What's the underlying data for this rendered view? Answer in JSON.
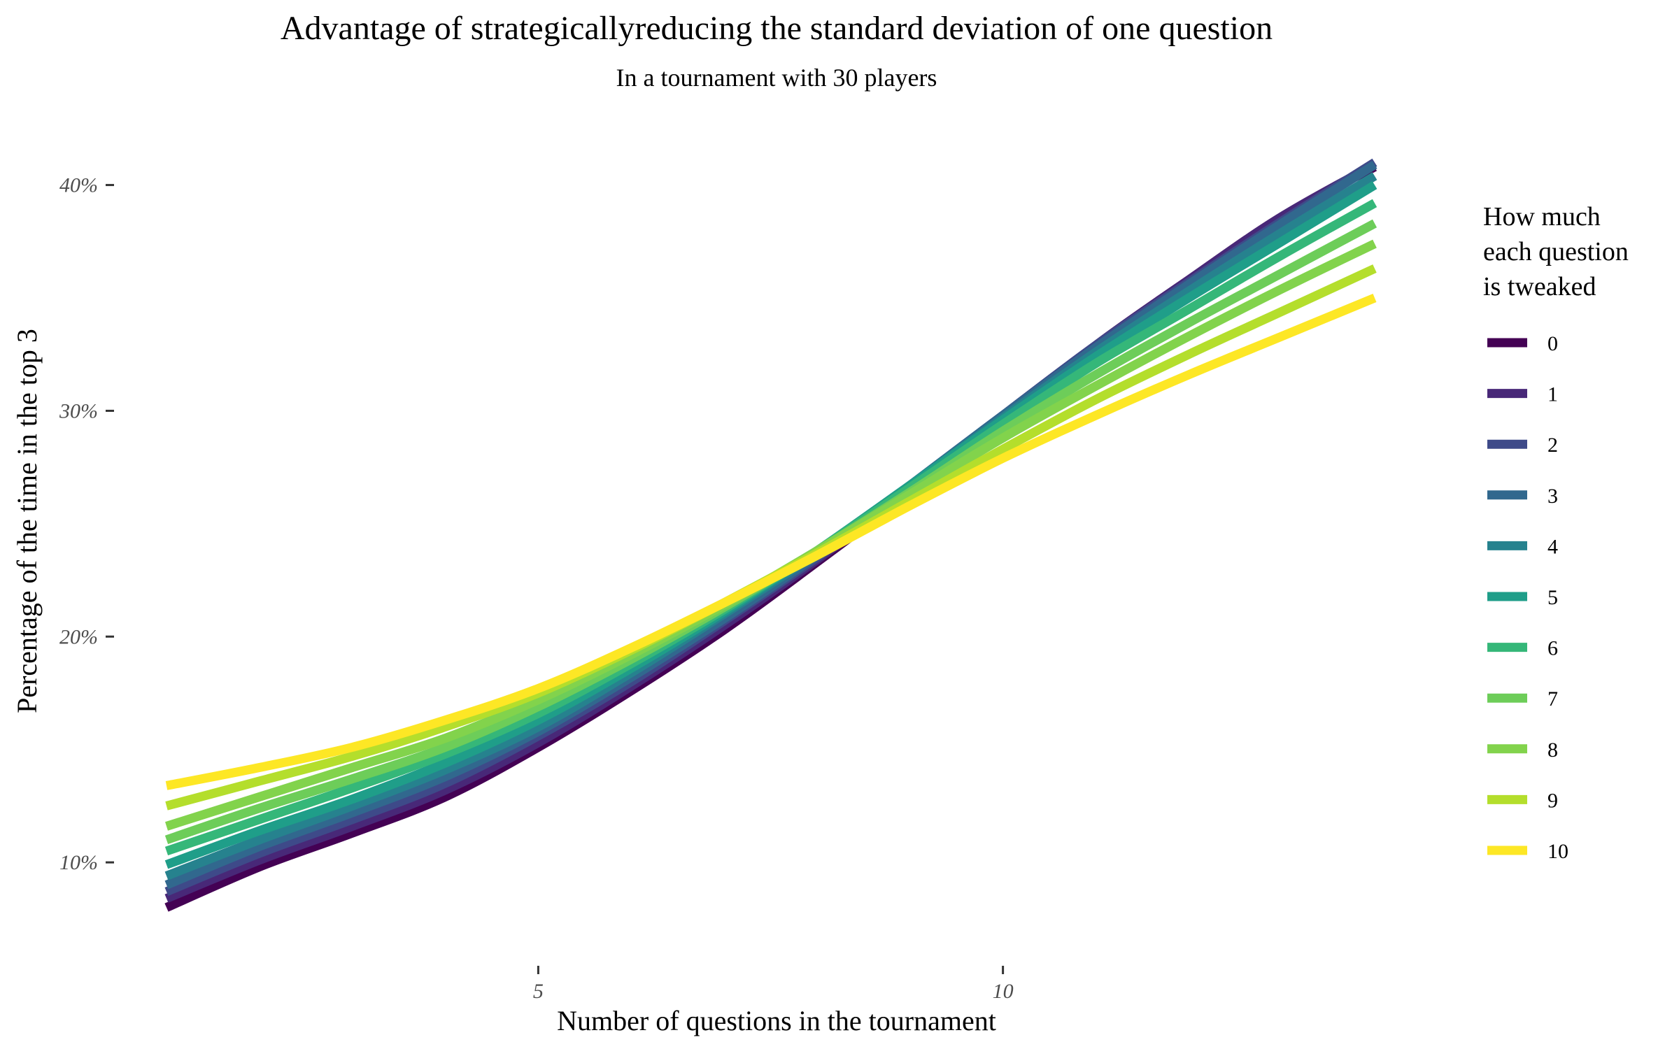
{
  "chart_data": {
    "type": "line",
    "title": "Advantage of strategicallyreducing the standard deviation of one question",
    "subtitle": "In a tournament with 30 players",
    "xlabel": "Number of questions in the tournament",
    "ylabel": "Percentage of the time in the top 3",
    "xlim": [
      1,
      14
    ],
    "ylim": [
      7,
      42
    ],
    "x_ticks": [
      5,
      10
    ],
    "y_ticks": [
      10,
      20,
      30,
      40
    ],
    "y_tick_suffix": "%",
    "grid": false,
    "legend": {
      "title_lines": [
        "How much",
        "each question",
        "is tweaked"
      ],
      "position": "right"
    },
    "x": [
      1,
      2,
      3,
      4,
      5,
      6,
      7,
      8,
      9,
      10,
      11,
      12,
      13,
      14
    ],
    "series": [
      {
        "name": "0",
        "color": "#440154",
        "values": [
          8.0,
          9.8,
          11.3,
          12.9,
          15.1,
          17.6,
          20.3,
          23.3,
          26.4,
          29.6,
          32.9,
          35.8,
          38.6,
          40.8
        ]
      },
      {
        "name": "1",
        "color": "#482878",
        "values": [
          8.4,
          10.1,
          11.6,
          13.2,
          15.3,
          17.8,
          20.5,
          23.4,
          26.5,
          29.7,
          32.9,
          35.8,
          38.6,
          40.9
        ]
      },
      {
        "name": "2",
        "color": "#3E4A89",
        "values": [
          8.7,
          10.4,
          11.9,
          13.5,
          15.6,
          18.0,
          20.7,
          23.5,
          26.6,
          29.8,
          32.9,
          35.7,
          38.4,
          41.0
        ]
      },
      {
        "name": "3",
        "color": "#31688E",
        "values": [
          9.0,
          10.7,
          12.2,
          13.8,
          15.8,
          18.2,
          20.8,
          23.6,
          26.7,
          29.8,
          32.8,
          35.6,
          38.3,
          40.9
        ]
      },
      {
        "name": "4",
        "color": "#26828E",
        "values": [
          9.4,
          11.0,
          12.5,
          14.1,
          16.0,
          18.4,
          21.0,
          23.7,
          26.7,
          29.7,
          32.6,
          35.3,
          37.9,
          40.4
        ]
      },
      {
        "name": "5",
        "color": "#1F9E89",
        "values": [
          9.9,
          11.4,
          12.8,
          14.4,
          16.3,
          18.6,
          21.1,
          23.8,
          26.7,
          29.6,
          32.4,
          35.0,
          37.5,
          40.0
        ]
      },
      {
        "name": "6",
        "color": "#35B779",
        "values": [
          10.5,
          11.9,
          13.3,
          14.8,
          16.6,
          18.8,
          21.2,
          23.8,
          26.6,
          29.4,
          32.1,
          34.5,
          36.9,
          39.2
        ]
      },
      {
        "name": "7",
        "color": "#6DCD59",
        "values": [
          11.0,
          12.4,
          13.7,
          15.1,
          16.9,
          19.0,
          21.3,
          23.8,
          26.4,
          29.1,
          31.6,
          33.9,
          36.1,
          38.3
        ]
      },
      {
        "name": "8",
        "color": "#82D34C",
        "values": [
          11.6,
          12.9,
          14.2,
          15.5,
          17.2,
          19.2,
          21.4,
          23.8,
          26.3,
          28.8,
          31.1,
          33.3,
          35.4,
          37.4
        ]
      },
      {
        "name": "9",
        "color": "#B4DE2C",
        "values": [
          12.5,
          13.6,
          14.7,
          16.0,
          17.5,
          19.4,
          21.5,
          23.7,
          26.0,
          28.3,
          30.5,
          32.5,
          34.4,
          36.3
        ]
      },
      {
        "name": "10",
        "color": "#FDE725",
        "values": [
          13.4,
          14.2,
          15.1,
          16.3,
          17.7,
          19.5,
          21.5,
          23.6,
          25.8,
          27.9,
          29.8,
          31.6,
          33.3,
          35.0
        ]
      }
    ]
  }
}
